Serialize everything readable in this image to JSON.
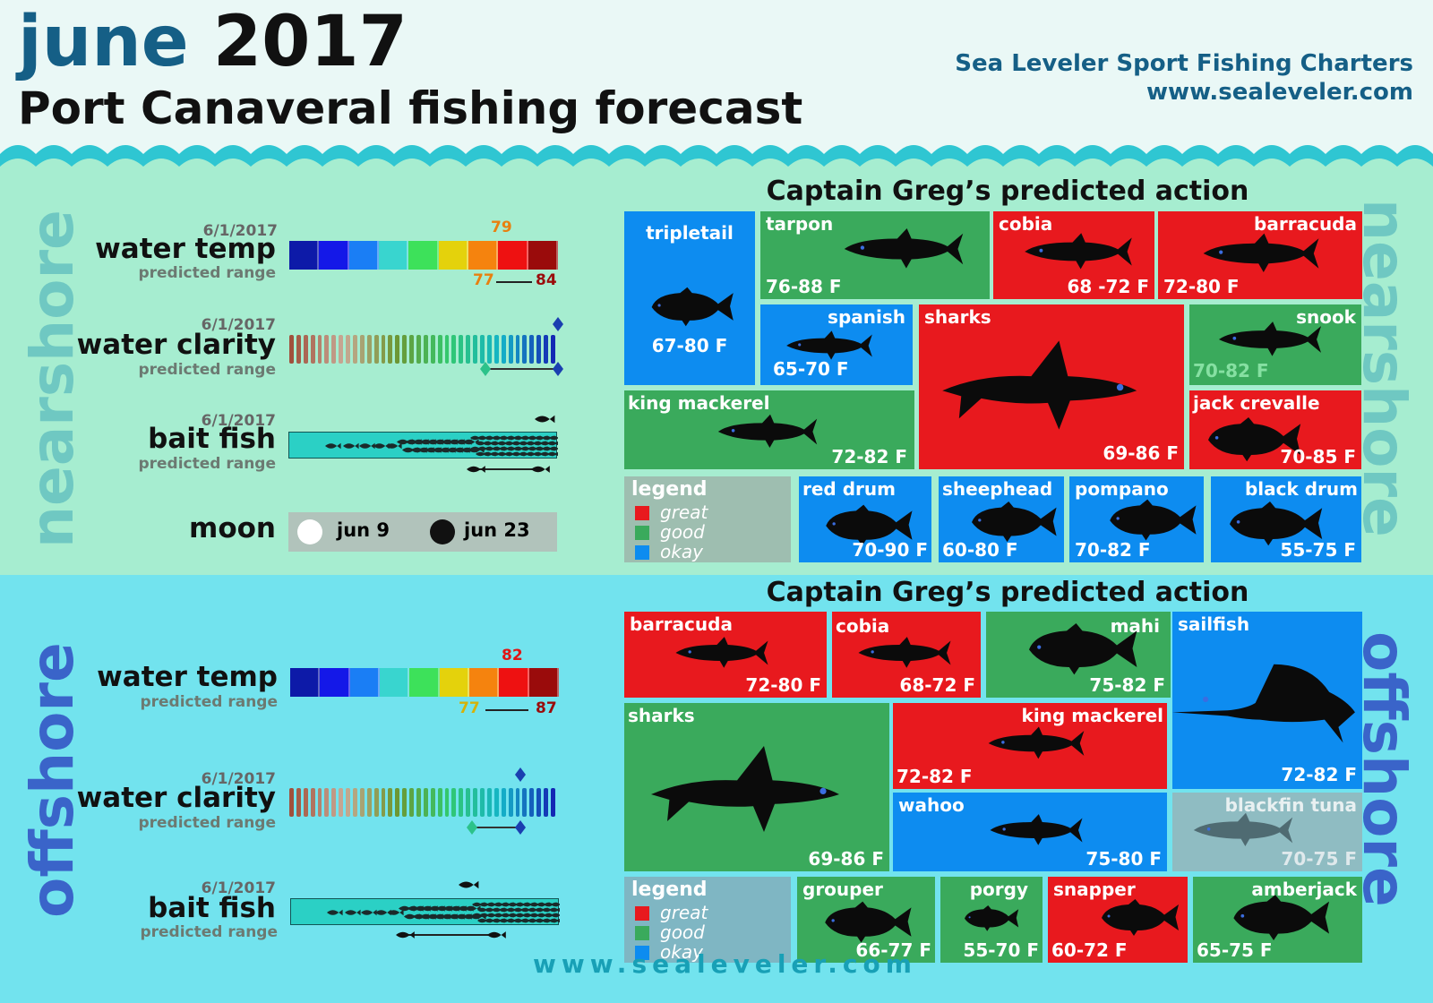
{
  "header": {
    "month": "june",
    "year": "2017",
    "subtitle": "Port Canaveral fishing forecast",
    "brand_name": "Sea Leveler Sport Fishing Charters",
    "brand_url": "www.sealeveler.com"
  },
  "colors": {
    "great": "#e8191e",
    "good": "#3aaa5c",
    "okay": "#0d8cf0",
    "title_blue": "#155f86",
    "nearshore_bg": "#a6edd0",
    "offshore_bg": "#72e3ee"
  },
  "temp_scale_colors": [
    "#0d1aa8",
    "#1418e8",
    "#1a7ef5",
    "#39d5cf",
    "#3de15a",
    "#e4d20c",
    "#f5830e",
    "#ee1111",
    "#9a0b0b"
  ],
  "nearshore": {
    "side_label": "nearshore",
    "section_title": "Captain Greg’s predicted action",
    "water_temp": {
      "date": "6/1/2017",
      "label": "water temp",
      "range_label": "predicted range",
      "current": "79",
      "range_low": "77",
      "range_high": "84"
    },
    "water_clarity": {
      "date": "6/1/2017",
      "label": "water clarity",
      "range_label": "predicted range",
      "current_level": 1.0,
      "range_low_level": 0.73,
      "range_high_level": 1.0
    },
    "bait_fish": {
      "date": "6/1/2017",
      "label": "bait fish",
      "range_label": "predicted range",
      "current_level": 0.95,
      "range_low_level": 0.69,
      "range_high_level": 0.95
    },
    "moon": {
      "label": "moon",
      "full_date": "jun 9",
      "new_date": "jun 23"
    },
    "legend": {
      "title": "legend",
      "great": "great",
      "good": "good",
      "okay": "okay"
    },
    "fish": [
      {
        "name": "tripletail",
        "range": "67-80 F",
        "rating": "okay",
        "icon": "tripletail-icon"
      },
      {
        "name": "tarpon",
        "range": "76-88 F",
        "rating": "good",
        "icon": "tarpon-icon"
      },
      {
        "name": "cobia",
        "range": "68 -72 F",
        "rating": "great",
        "icon": "cobia-icon"
      },
      {
        "name": "barracuda",
        "range": "72-80 F",
        "rating": "great",
        "icon": "barracuda-icon"
      },
      {
        "name": "spanish",
        "range": "65-70 F",
        "rating": "okay",
        "icon": "spanish-mackerel-icon"
      },
      {
        "name": "sharks",
        "range": "69-86 F",
        "rating": "great",
        "icon": "shark-icon"
      },
      {
        "name": "snook",
        "range": "70-82 F",
        "rating": "good",
        "icon": "snook-icon"
      },
      {
        "name": "king mackerel",
        "range": "72-82 F",
        "rating": "good",
        "icon": "king-mackerel-icon"
      },
      {
        "name": "jack crevalle",
        "range": "70-85 F",
        "rating": "great",
        "icon": "jack-crevalle-icon"
      },
      {
        "name": "red drum",
        "range": "70-90 F",
        "rating": "okay",
        "icon": "red-drum-icon"
      },
      {
        "name": "sheephead",
        "range": "60-80 F",
        "rating": "okay",
        "icon": "sheephead-icon"
      },
      {
        "name": "pompano",
        "range": "70-82 F",
        "rating": "okay",
        "icon": "pompano-icon"
      },
      {
        "name": "black drum",
        "range": "55-75 F",
        "rating": "okay",
        "icon": "black-drum-icon"
      }
    ]
  },
  "offshore": {
    "side_label": "offshore",
    "section_title": "Captain Greg’s predicted action",
    "water_temp": {
      "label": "water temp",
      "range_label": "predicted range",
      "current": "82",
      "range_low": "77",
      "range_high": "87"
    },
    "water_clarity": {
      "date": "6/1/2017",
      "label": "water clarity",
      "range_label": "predicted range",
      "current_level": 0.86,
      "range_low_level": 0.68,
      "range_high_level": 0.86
    },
    "bait_fish": {
      "date": "6/1/2017",
      "label": "bait fish",
      "range_label": "predicted range",
      "current_level": 0.66,
      "range_low_level": 0.42,
      "range_high_level": 0.78
    },
    "legend": {
      "title": "legend",
      "great": "great",
      "good": "good",
      "okay": "okay"
    },
    "fish": [
      {
        "name": "barracuda",
        "range": "72-80 F",
        "rating": "great",
        "icon": "barracuda-icon"
      },
      {
        "name": "cobia",
        "range": "68-72 F",
        "rating": "great",
        "icon": "cobia-icon"
      },
      {
        "name": "mahi",
        "range": "75-82 F",
        "rating": "good",
        "icon": "mahi-icon"
      },
      {
        "name": "sailfish",
        "range": "72-82 F",
        "rating": "okay",
        "icon": "sailfish-icon"
      },
      {
        "name": "sharks",
        "range": "69-86 F",
        "rating": "good",
        "icon": "shark-icon"
      },
      {
        "name": "king mackerel",
        "range": "72-82 F",
        "rating": "great",
        "icon": "king-mackerel-icon"
      },
      {
        "name": "wahoo",
        "range": "75-80 F",
        "rating": "okay",
        "icon": "wahoo-icon"
      },
      {
        "name": "blackfin tuna",
        "range": "70-75 F",
        "rating": "muted",
        "icon": "blackfin-tuna-icon"
      },
      {
        "name": "grouper",
        "range": "66-77 F",
        "rating": "good",
        "icon": "grouper-icon"
      },
      {
        "name": "porgy",
        "range": "55-70 F",
        "rating": "good",
        "icon": "porgy-icon"
      },
      {
        "name": "snapper",
        "range": "60-72 F",
        "rating": "great",
        "icon": "snapper-icon"
      },
      {
        "name": "amberjack",
        "range": "65-75 F",
        "rating": "good",
        "icon": "amberjack-icon"
      }
    ]
  },
  "footer": {
    "url": "www.sealeveler.com"
  }
}
